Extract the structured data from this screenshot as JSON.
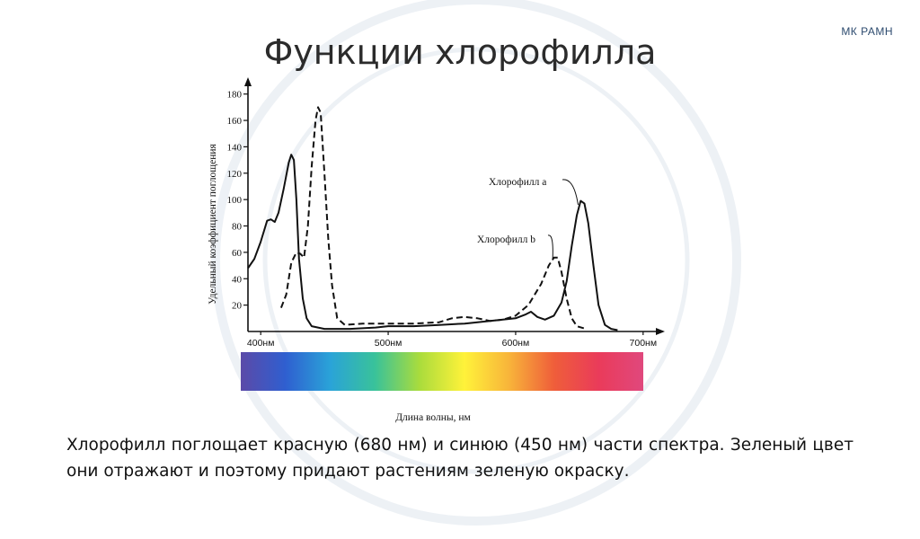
{
  "page": {
    "title": "Функции хлорофилла",
    "corner_label": "МК РАМН",
    "caption": "Хлорофилл поглощает красную (680 нм) и синюю (450 нм) части спектра. Зеленый цвет они отражают и поэтому придают растениям зеленую окраску."
  },
  "colors": {
    "curve": "#111111",
    "watermark": "#dfe6ee",
    "spectrum": [
      "#5b4aa8",
      "#2f5fd0",
      "#2aa3d8",
      "#39c29a",
      "#aadc3c",
      "#fff23a",
      "#f8b43a",
      "#ef5e3a",
      "#ea3b5a",
      "#e0487d"
    ]
  },
  "chart_data": {
    "type": "line",
    "xlabel": "Длина волны, нм",
    "ylabel": "Удельный коэффициент поглощения",
    "xlim": [
      390,
      710
    ],
    "ylim": [
      0,
      190
    ],
    "x_ticks": [
      {
        "value": 400,
        "label": "400нм"
      },
      {
        "value": 500,
        "label": "500нм"
      },
      {
        "value": 600,
        "label": "600нм"
      },
      {
        "value": 700,
        "label": "700нм"
      }
    ],
    "y_ticks": [
      20,
      40,
      60,
      80,
      100,
      120,
      140,
      160,
      180
    ],
    "grid": false,
    "series": [
      {
        "name": "Хлорофилл a",
        "style": "solid",
        "points": [
          [
            390,
            48
          ],
          [
            395,
            55
          ],
          [
            400,
            68
          ],
          [
            405,
            84
          ],
          [
            408,
            85
          ],
          [
            411,
            83
          ],
          [
            414,
            90
          ],
          [
            418,
            108
          ],
          [
            422,
            128
          ],
          [
            424,
            134
          ],
          [
            426,
            130
          ],
          [
            428,
            100
          ],
          [
            430,
            55
          ],
          [
            433,
            25
          ],
          [
            436,
            10
          ],
          [
            440,
            4
          ],
          [
            450,
            2
          ],
          [
            470,
            2
          ],
          [
            490,
            3
          ],
          [
            500,
            4
          ],
          [
            520,
            4
          ],
          [
            540,
            5
          ],
          [
            560,
            6
          ],
          [
            580,
            8
          ],
          [
            590,
            9
          ],
          [
            600,
            10
          ],
          [
            608,
            13
          ],
          [
            612,
            15
          ],
          [
            617,
            11
          ],
          [
            623,
            9
          ],
          [
            630,
            12
          ],
          [
            636,
            22
          ],
          [
            640,
            38
          ],
          [
            644,
            65
          ],
          [
            648,
            88
          ],
          [
            651,
            99
          ],
          [
            654,
            97
          ],
          [
            657,
            82
          ],
          [
            661,
            50
          ],
          [
            665,
            20
          ],
          [
            670,
            5
          ],
          [
            675,
            2
          ],
          [
            680,
            1
          ]
        ]
      },
      {
        "name": "Хлорофилл b",
        "style": "dashed",
        "points": [
          [
            416,
            18
          ],
          [
            420,
            28
          ],
          [
            424,
            52
          ],
          [
            428,
            60
          ],
          [
            431,
            59
          ],
          [
            434,
            56
          ],
          [
            437,
            80
          ],
          [
            440,
            125
          ],
          [
            443,
            160
          ],
          [
            445,
            170
          ],
          [
            447,
            166
          ],
          [
            450,
            120
          ],
          [
            453,
            70
          ],
          [
            456,
            35
          ],
          [
            460,
            10
          ],
          [
            466,
            5
          ],
          [
            480,
            6
          ],
          [
            500,
            6
          ],
          [
            520,
            6
          ],
          [
            540,
            7
          ],
          [
            550,
            10
          ],
          [
            560,
            11
          ],
          [
            570,
            10
          ],
          [
            580,
            8
          ],
          [
            590,
            9
          ],
          [
            600,
            12
          ],
          [
            610,
            20
          ],
          [
            620,
            36
          ],
          [
            626,
            50
          ],
          [
            630,
            56
          ],
          [
            633,
            56
          ],
          [
            636,
            45
          ],
          [
            640,
            25
          ],
          [
            644,
            10
          ],
          [
            648,
            4
          ],
          [
            655,
            2
          ]
        ]
      }
    ],
    "annotations": [
      {
        "text": "Хлорофилл a",
        "series": 0
      },
      {
        "text": "Хлорофилл b",
        "series": 1
      }
    ]
  }
}
